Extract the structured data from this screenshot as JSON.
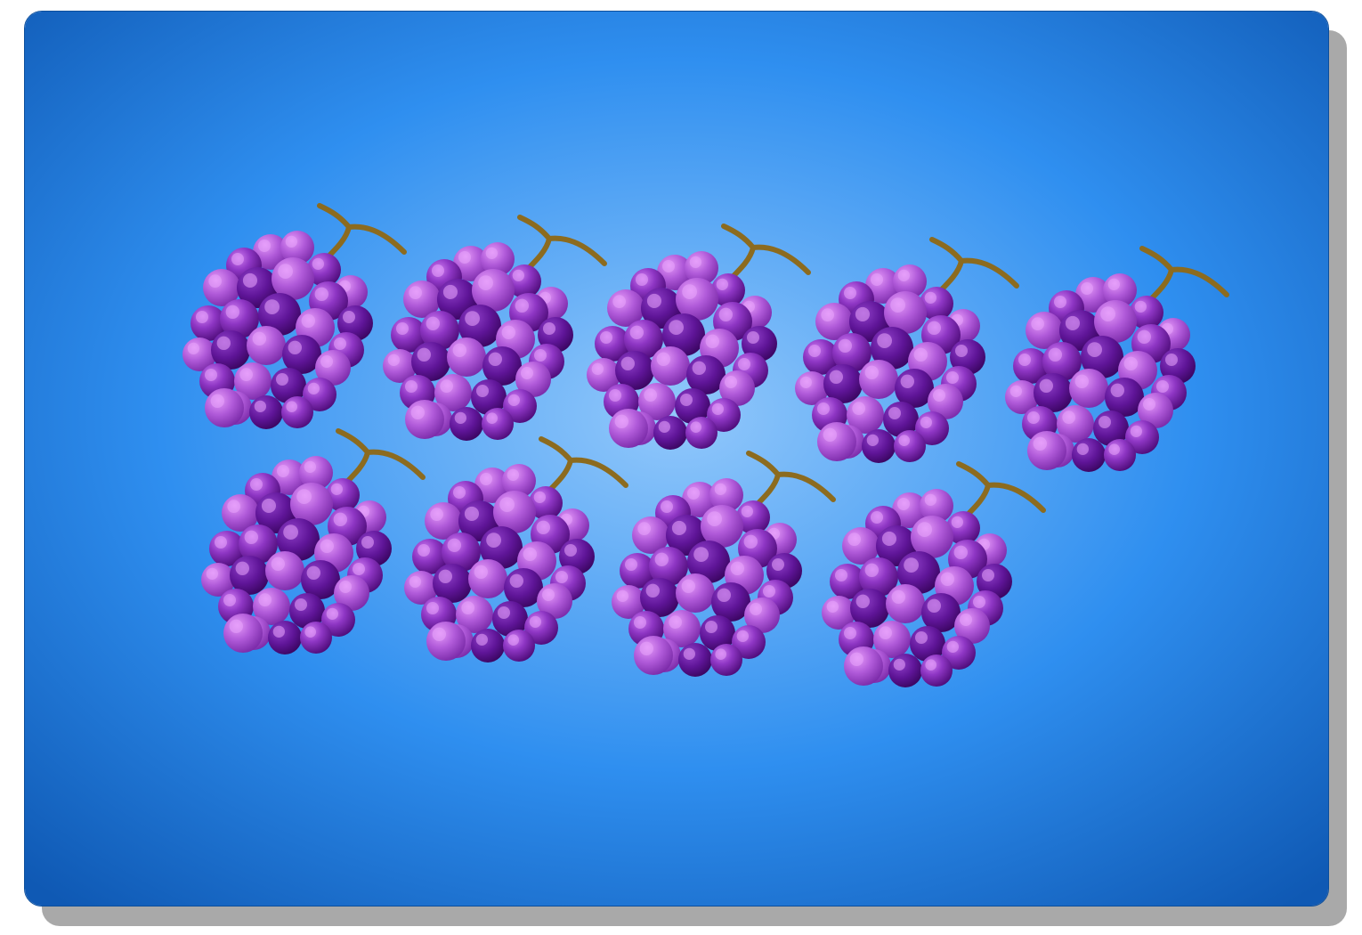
{
  "card": {
    "background_center_color": "#92c8fb",
    "background_mid_color": "#2f8ff0",
    "background_edge_color": "#0f59b4",
    "shadow_color": "#a9a9a9"
  },
  "grapes": {
    "count": 9,
    "rows": [
      5,
      4
    ],
    "icon": "grape-bunch-icon",
    "stem_color": "#8c6b1f",
    "berry_colors": [
      "#4a0a72",
      "#6a1ca3",
      "#8b35c0",
      "#a650d4",
      "#d98af5"
    ]
  }
}
